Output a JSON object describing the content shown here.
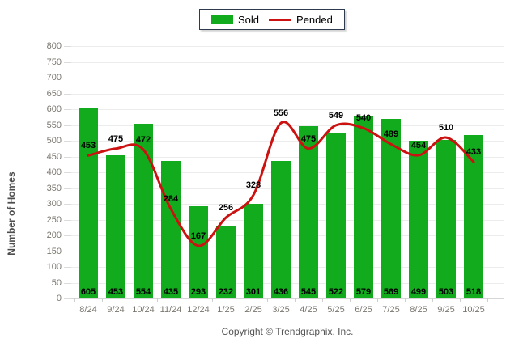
{
  "legend": {
    "items": [
      {
        "label": "Sold",
        "swatch": "bar-swatch",
        "color": "#12ab1e"
      },
      {
        "label": "Pended",
        "swatch": "line-swatch",
        "color": "#cc1111"
      }
    ]
  },
  "footer": {
    "text": "Copyright © Trendgraphix, Inc."
  },
  "chart_data": {
    "type": "bar+line",
    "title": "",
    "xlabel": "",
    "ylabel": "Number of Homes",
    "ylim": [
      0,
      800
    ],
    "ytick_step": 50,
    "grid": true,
    "legend_position": "top-center",
    "categories": [
      "8/24",
      "9/24",
      "10/24",
      "11/24",
      "12/24",
      "1/25",
      "2/25",
      "3/25",
      "4/25",
      "5/25",
      "6/25",
      "7/25",
      "8/25",
      "9/25",
      "10/25"
    ],
    "series": [
      {
        "name": "Sold",
        "type": "bar",
        "color": "#12ab1e",
        "values": [
          605,
          453,
          554,
          435,
          293,
          232,
          301,
          436,
          545,
          522,
          579,
          569,
          499,
          503,
          518
        ]
      },
      {
        "name": "Pended",
        "type": "line",
        "color": "#cc1111",
        "values": [
          453,
          475,
          472,
          284,
          167,
          256,
          328,
          556,
          475,
          549,
          540,
          489,
          454,
          510,
          433
        ]
      }
    ],
    "colors": {
      "grid": "#ececec",
      "axis_text": "#7a766f",
      "value_labels": "#000000"
    }
  }
}
